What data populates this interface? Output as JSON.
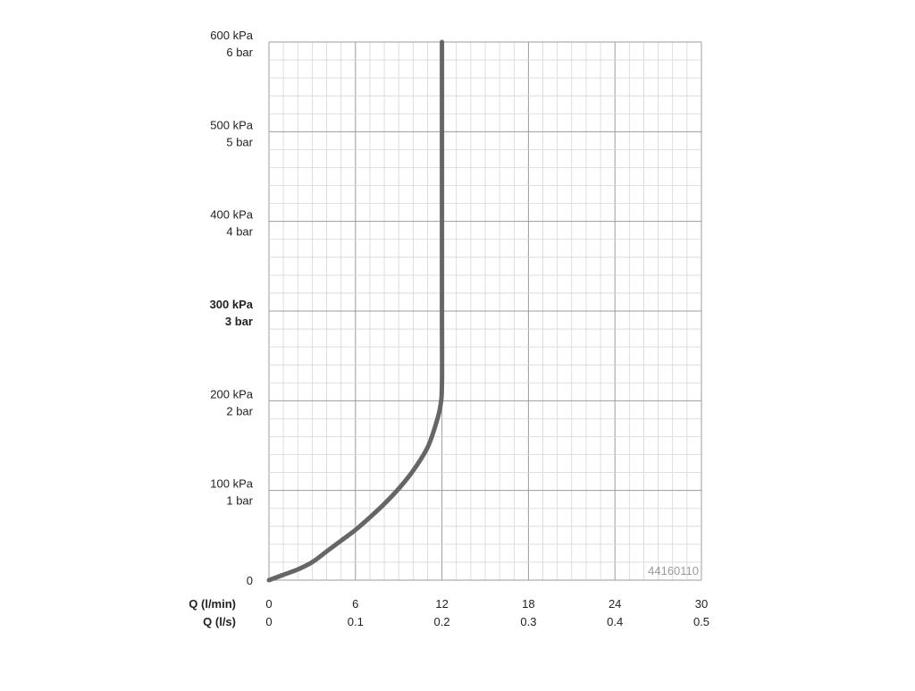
{
  "chart_data": {
    "type": "line",
    "x_label_primary": "Q (l/min)",
    "x_label_secondary": "Q (l/s)",
    "xlim": [
      0,
      30
    ],
    "ylim": [
      0,
      600
    ],
    "x_ticks_primary": [
      "0",
      "6",
      "12",
      "18",
      "24",
      "30"
    ],
    "x_ticks_secondary": [
      "0",
      "0.1",
      "0.2",
      "0.3",
      "0.4",
      "0.5"
    ],
    "y_ticks": [
      {
        "value": 0,
        "kpa": "0",
        "bar": "",
        "bold": false
      },
      {
        "value": 100,
        "kpa": "100 kPa",
        "bar": "1 bar",
        "bold": false
      },
      {
        "value": 200,
        "kpa": "200 kPa",
        "bar": "2 bar",
        "bold": false
      },
      {
        "value": 300,
        "kpa": "300 kPa",
        "bar": "3 bar",
        "bold": true
      },
      {
        "value": 400,
        "kpa": "400 kPa",
        "bar": "4 bar",
        "bold": false
      },
      {
        "value": 500,
        "kpa": "500 kPa",
        "bar": "5 bar",
        "bold": false
      },
      {
        "value": 600,
        "kpa": "600 kPa",
        "bar": "6 bar",
        "bold": false
      }
    ],
    "grid": true,
    "code_label": "44160110",
    "series": [
      {
        "x": [
          0,
          1,
          2,
          3,
          4,
          5,
          6,
          7,
          8,
          9,
          10,
          11,
          11.6,
          11.9,
          12,
          12,
          12,
          12,
          12
        ],
        "y": [
          0,
          6,
          12,
          20,
          32,
          44,
          56,
          70,
          85,
          102,
          122,
          148,
          175,
          195,
          220,
          300,
          400,
          500,
          600
        ],
        "color": "#666666"
      }
    ]
  }
}
